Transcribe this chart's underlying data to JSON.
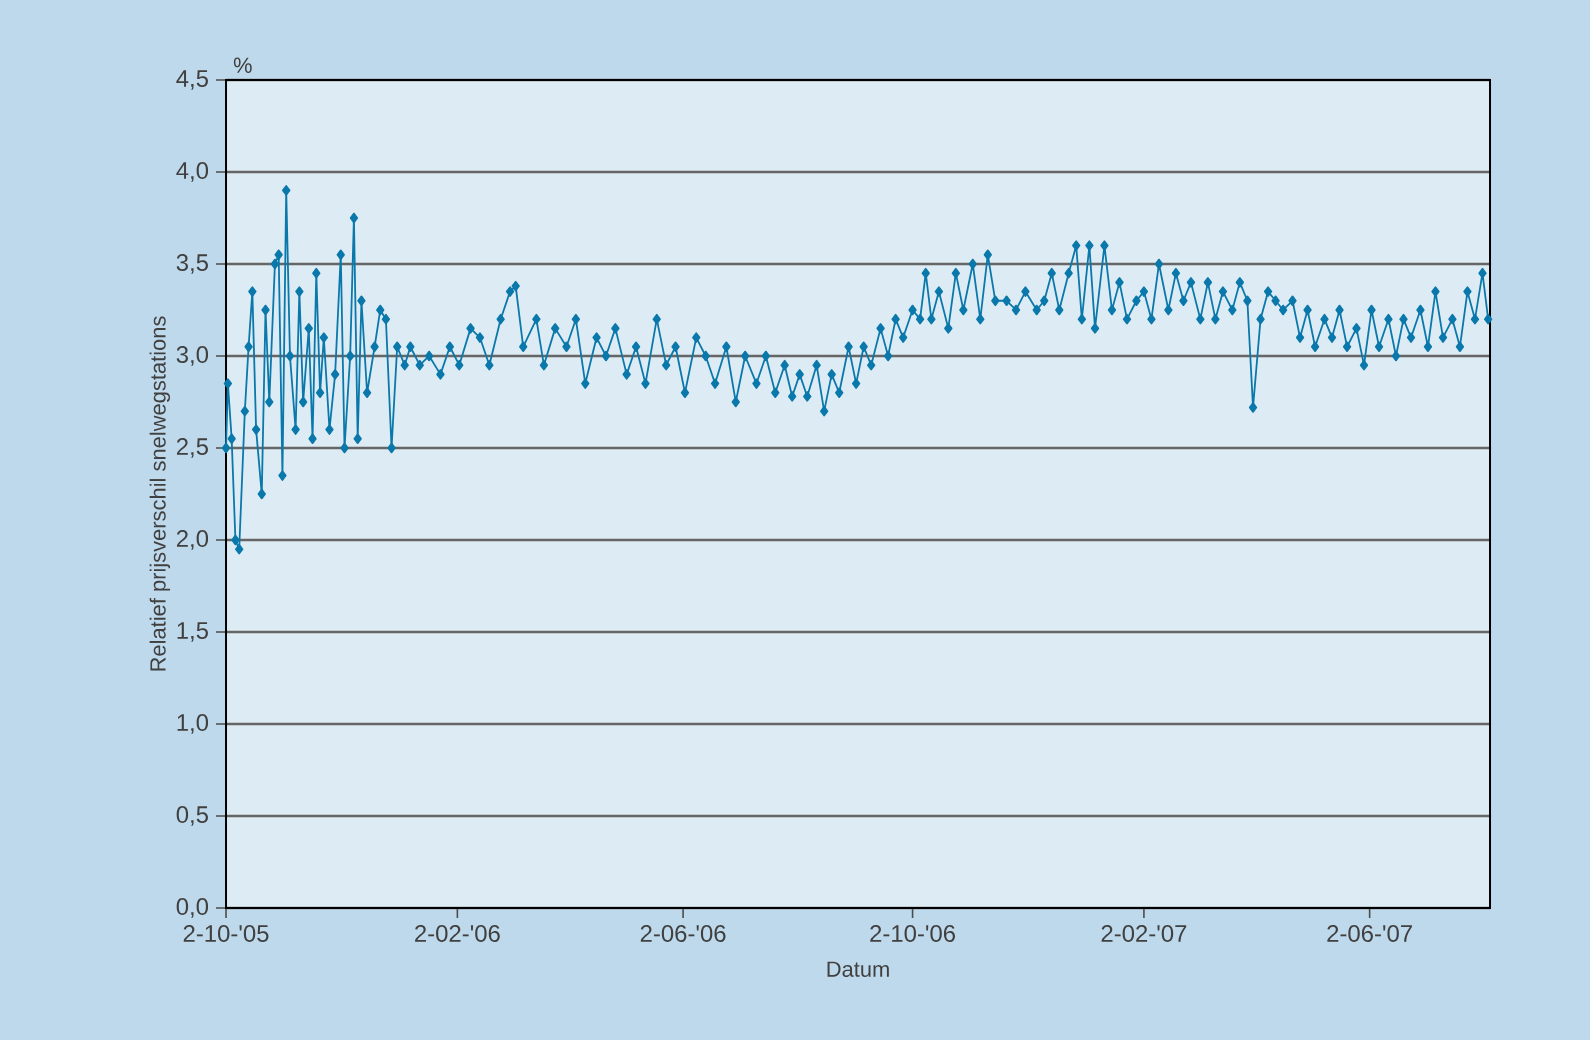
{
  "chart_data": {
    "type": "line",
    "xlabel": "Datum",
    "ylabel": "Relatief prijsverschil snelwegstations",
    "annotations": [
      "%"
    ],
    "x": [
      "2005-10-02",
      "2005-10-03",
      "2005-10-05",
      "2005-10-07",
      "2005-10-09",
      "2005-10-12",
      "2005-10-14",
      "2005-10-16",
      "2005-10-18",
      "2005-10-21",
      "2005-10-23",
      "2005-10-25",
      "2005-10-28",
      "2005-10-30",
      "2005-11-01",
      "2005-11-03",
      "2005-11-05",
      "2005-11-08",
      "2005-11-10",
      "2005-11-12",
      "2005-11-15",
      "2005-11-17",
      "2005-11-19",
      "2005-11-21",
      "2005-11-23",
      "2005-11-26",
      "2005-11-29",
      "2005-12-02",
      "2005-12-04",
      "2005-12-07",
      "2005-12-09",
      "2005-12-11",
      "2005-12-13",
      "2005-12-16",
      "2005-12-20",
      "2005-12-23",
      "2005-12-26",
      "2005-12-29",
      "2006-01-01",
      "2006-01-05",
      "2006-01-08",
      "2006-01-13",
      "2006-01-18",
      "2006-01-24",
      "2006-01-29",
      "2006-02-03",
      "2006-02-09",
      "2006-02-14",
      "2006-02-19",
      "2006-02-25",
      "2006-03-02",
      "2006-03-05",
      "2006-03-09",
      "2006-03-16",
      "2006-03-20",
      "2006-03-26",
      "2006-04-01",
      "2006-04-06",
      "2006-04-11",
      "2006-04-17",
      "2006-04-22",
      "2006-04-27",
      "2006-05-03",
      "2006-05-08",
      "2006-05-13",
      "2006-05-19",
      "2006-05-24",
      "2006-05-29",
      "2006-06-03",
      "2006-06-09",
      "2006-06-14",
      "2006-06-19",
      "2006-06-25",
      "2006-06-30",
      "2006-07-05",
      "2006-07-11",
      "2006-07-16",
      "2006-07-21",
      "2006-07-26",
      "2006-07-30",
      "2006-08-03",
      "2006-08-07",
      "2006-08-12",
      "2006-08-16",
      "2006-08-20",
      "2006-08-24",
      "2006-08-29",
      "2006-09-02",
      "2006-09-06",
      "2006-09-10",
      "2006-09-15",
      "2006-09-19",
      "2006-09-23",
      "2006-09-27",
      "2006-10-02",
      "2006-10-06",
      "2006-10-09",
      "2006-10-12",
      "2006-10-16",
      "2006-10-21",
      "2006-10-25",
      "2006-10-29",
      "2006-11-03",
      "2006-11-07",
      "2006-11-11",
      "2006-11-15",
      "2006-11-21",
      "2006-11-26",
      "2006-12-01",
      "2006-12-07",
      "2006-12-11",
      "2006-12-15",
      "2006-12-19",
      "2006-12-24",
      "2006-12-28",
      "2006-12-31",
      "2007-01-04",
      "2007-01-07",
      "2007-01-12",
      "2007-01-16",
      "2007-01-20",
      "2007-01-24",
      "2007-01-29",
      "2007-02-02",
      "2007-02-06",
      "2007-02-10",
      "2007-02-15",
      "2007-02-19",
      "2007-02-23",
      "2007-02-27",
      "2007-03-04",
      "2007-03-08",
      "2007-03-12",
      "2007-03-16",
      "2007-03-21",
      "2007-03-25",
      "2007-03-29",
      "2007-04-01",
      "2007-04-05",
      "2007-04-09",
      "2007-04-13",
      "2007-04-17",
      "2007-04-22",
      "2007-04-26",
      "2007-04-30",
      "2007-05-04",
      "2007-05-09",
      "2007-05-13",
      "2007-05-17",
      "2007-05-21",
      "2007-05-26",
      "2007-05-30",
      "2007-06-03",
      "2007-06-07",
      "2007-06-12",
      "2007-06-16",
      "2007-06-20",
      "2007-06-24",
      "2007-06-29",
      "2007-07-03",
      "2007-07-07",
      "2007-07-11",
      "2007-07-16",
      "2007-07-20",
      "2007-07-24",
      "2007-07-28",
      "2007-08-01",
      "2007-08-04"
    ],
    "series": [
      {
        "color": "#0a78ab",
        "values": [
          2.5,
          2.85,
          2.55,
          2.0,
          1.95,
          2.7,
          3.05,
          3.35,
          2.6,
          2.25,
          3.25,
          2.75,
          3.5,
          3.55,
          2.35,
          3.9,
          3.0,
          2.6,
          3.35,
          2.75,
          3.15,
          2.55,
          3.45,
          2.8,
          3.1,
          2.6,
          2.9,
          3.55,
          2.5,
          3.0,
          3.75,
          2.55,
          3.3,
          2.8,
          3.05,
          3.25,
          3.2,
          2.5,
          3.05,
          2.95,
          3.05,
          2.95,
          3.0,
          2.9,
          3.05,
          2.95,
          3.15,
          3.1,
          2.95,
          3.2,
          3.35,
          3.38,
          3.05,
          3.2,
          2.95,
          3.15,
          3.05,
          3.2,
          2.85,
          3.1,
          3.0,
          3.15,
          2.9,
          3.05,
          2.85,
          3.2,
          2.95,
          3.05,
          2.8,
          3.1,
          3.0,
          2.85,
          3.05,
          2.75,
          3.0,
          2.85,
          3.0,
          2.8,
          2.95,
          2.78,
          2.9,
          2.78,
          2.95,
          2.7,
          2.9,
          2.8,
          3.05,
          2.85,
          3.05,
          2.95,
          3.15,
          3.0,
          3.2,
          3.1,
          3.25,
          3.2,
          3.45,
          3.2,
          3.35,
          3.15,
          3.45,
          3.25,
          3.5,
          3.2,
          3.55,
          3.3,
          3.3,
          3.25,
          3.35,
          3.25,
          3.3,
          3.45,
          3.25,
          3.45,
          3.6,
          3.2,
          3.6,
          3.15,
          3.6,
          3.25,
          3.4,
          3.2,
          3.3,
          3.35,
          3.2,
          3.5,
          3.25,
          3.45,
          3.3,
          3.4,
          3.2,
          3.4,
          3.2,
          3.35,
          3.25,
          3.4,
          3.3,
          2.72,
          3.2,
          3.35,
          3.3,
          3.25,
          3.3,
          3.1,
          3.25,
          3.05,
          3.2,
          3.1,
          3.25,
          3.05,
          3.15,
          2.95,
          3.25,
          3.05,
          3.2,
          3.0,
          3.2,
          3.1,
          3.25,
          3.05,
          3.35,
          3.1,
          3.2,
          3.05,
          3.35,
          3.2,
          3.45,
          3.2
        ]
      }
    ],
    "xlim": [
      "2005-10-02",
      "2007-08-05"
    ],
    "xticks": [
      {
        "value": "2005-10-02",
        "label": "2-10-'05"
      },
      {
        "value": "2006-02-02",
        "label": "2-02-'06"
      },
      {
        "value": "2006-06-02",
        "label": "2-06-'06"
      },
      {
        "value": "2006-10-02",
        "label": "2-10-'06"
      },
      {
        "value": "2007-02-02",
        "label": "2-02-'07"
      },
      {
        "value": "2007-06-02",
        "label": "2-06-'07"
      }
    ],
    "ylim": [
      0,
      4.5
    ],
    "yticks": [
      {
        "value": 0,
        "label": "0,0"
      },
      {
        "value": 0.5,
        "label": "0,5"
      },
      {
        "value": 1,
        "label": "1,0"
      },
      {
        "value": 1.5,
        "label": "1,5"
      },
      {
        "value": 2,
        "label": "2,0"
      },
      {
        "value": 2.5,
        "label": "2,5"
      },
      {
        "value": 3,
        "label": "3,0"
      },
      {
        "value": 3.5,
        "label": "3,5"
      },
      {
        "value": 4,
        "label": "4,0"
      },
      {
        "value": 4.5,
        "label": "4,5"
      }
    ],
    "grid": "y",
    "marker": "diamond",
    "line_style": "solid"
  }
}
